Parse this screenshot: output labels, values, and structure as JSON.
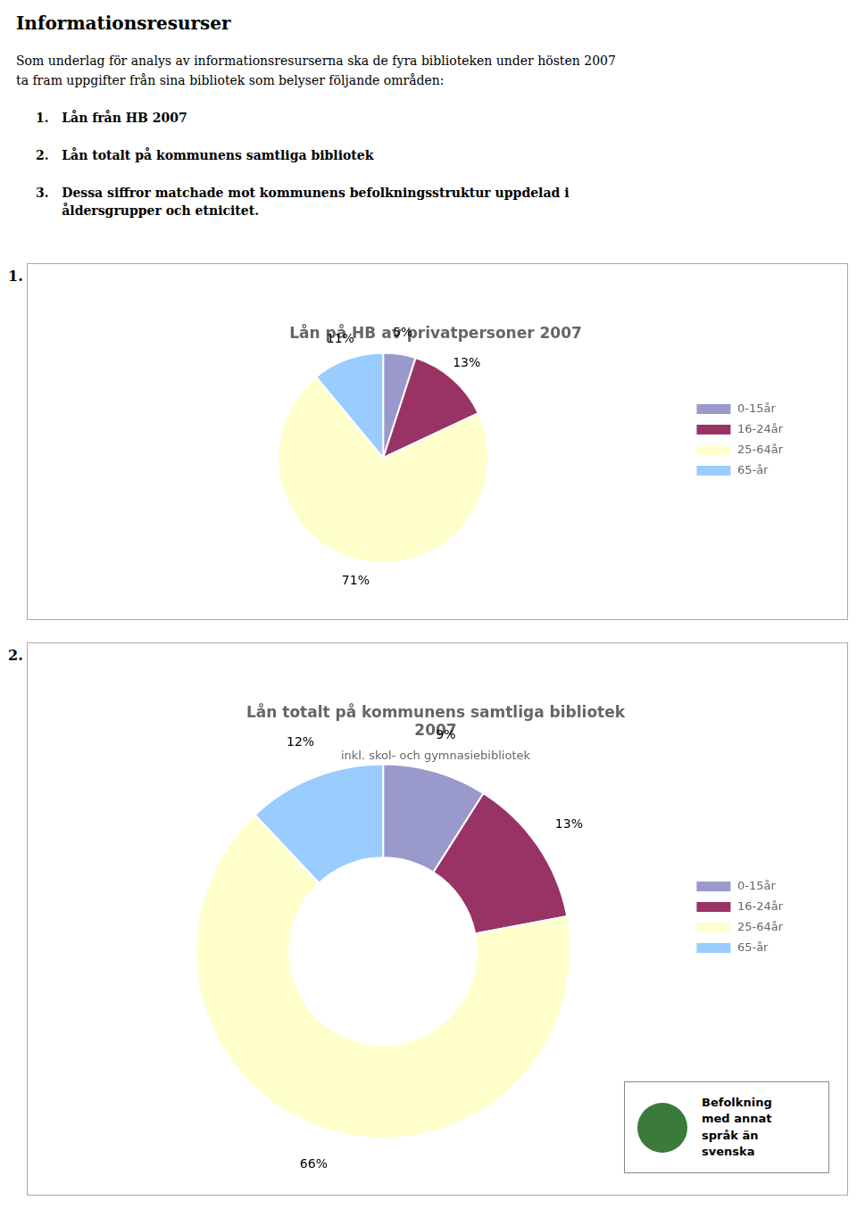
{
  "title": "Informationsresurser",
  "annotations": [
    "Som underlag för analys av informationsresurserna ska de fyra biblioteken under hösten 2007",
    "ta fram uppgifter från sina bibliotek som belyser följande områden:",
    "1.   Lån från HB 2007",
    "2.   Lån totalt på kommunens samtliga bibliotek",
    "3.   Dessa siffror matchade mot kommunens befolkningsstruktur uppdelad i",
    "      åldersgrupper och etnicitet."
  ],
  "chart_data": [
    {
      "type": "pie",
      "title": "Lån på HB av privatpersoner 2007",
      "categories": [
        "0-15år",
        "16-24år",
        "25-64år",
        "65-år"
      ],
      "values": [
        5,
        13,
        71,
        11
      ],
      "value_labels": [
        "5%",
        "13%",
        "71%",
        "11%"
      ],
      "colors": [
        "#9999cc",
        "#993366",
        "#ffffcc",
        "#99ccff"
      ],
      "data_labels": true,
      "legend": "right",
      "annotations": [
        "1."
      ]
    },
    {
      "type": "doughnut",
      "title": [
        "Lån totalt på kommunens samtliga bibliotek",
        "2007"
      ],
      "subtitle": "inkl. skol- och gymnasiebibliotek",
      "categories": [
        "0-15år",
        "16-24år",
        "25-64år",
        "65-år"
      ],
      "values": [
        9,
        13,
        66,
        12
      ],
      "value_labels": [
        "9%",
        "13%",
        "66%",
        "12%"
      ],
      "colors": [
        "#9999cc",
        "#993366",
        "#ffffcc",
        "#99ccff"
      ],
      "data_labels": true,
      "legend": "right",
      "annotations": [
        "2.",
        {
          "text": "Befolkning\nmed annat\nspråk än\nsvenska",
          "color": "#3a7a3a"
        }
      ]
    }
  ]
}
